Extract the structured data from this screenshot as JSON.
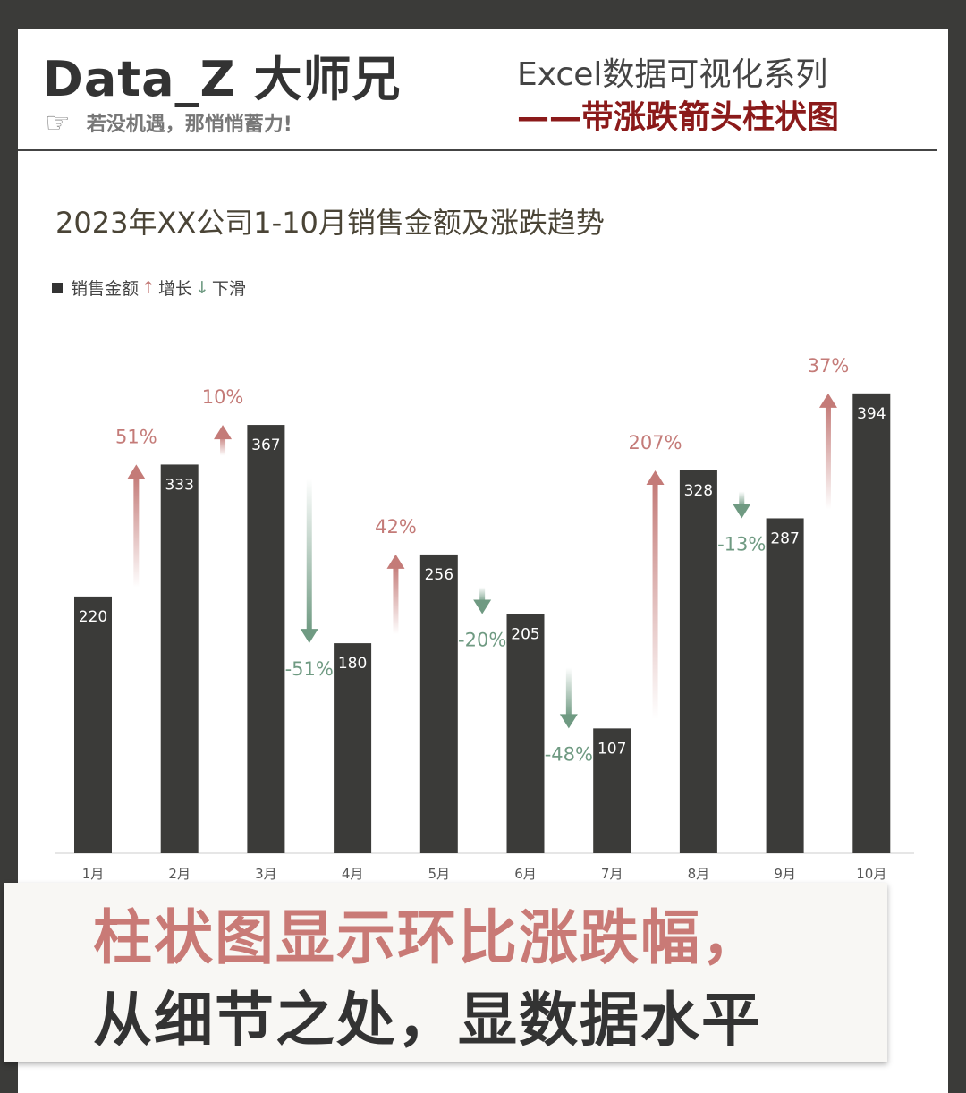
{
  "header": {
    "brand": "Data_Z 大师兄",
    "slogan": "若没机遇，那悄悄蓄力!",
    "series": "Excel数据可视化系列",
    "subtitle": "——带涨跌箭头柱状图",
    "hand_icon": "pointing-hand-icon"
  },
  "chart_data": {
    "type": "bar",
    "title": "2023年XX公司1-10月销售金额及涨跌趋势",
    "categories": [
      "1月",
      "2月",
      "3月",
      "4月",
      "5月",
      "6月",
      "7月",
      "8月",
      "9月",
      "10月"
    ],
    "values": [
      220,
      333,
      367,
      180,
      256,
      205,
      107,
      328,
      287,
      394
    ],
    "changes": [
      null,
      "51%",
      "10%",
      "-51%",
      "42%",
      "-20%",
      "-48%",
      "207%",
      "-13%",
      "37%"
    ],
    "legend": {
      "bar": "销售金额",
      "up": "增长",
      "down": "下滑"
    },
    "legend_position": "top-left",
    "grid": false,
    "colors": {
      "bar": "#3b3b39",
      "up": "#c47b78",
      "down": "#6f9a82"
    }
  },
  "banner": {
    "line1": "柱状图显示环比涨跌幅，",
    "line2": "从细节之处，显数据水平"
  }
}
